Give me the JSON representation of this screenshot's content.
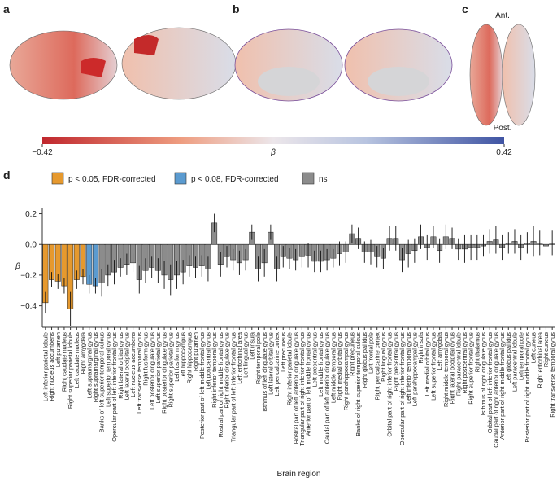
{
  "panels": [
    "a",
    "b",
    "c",
    "d"
  ],
  "brain_labels": {
    "anterior": "Ant.",
    "posterior": "Post."
  },
  "colorbar": {
    "label": "β",
    "ticks": [
      {
        "value": -0.42,
        "label": "−0.42"
      },
      {
        "value": 0.42,
        "label": "0.42"
      }
    ]
  },
  "chart_data": {
    "type": "bar",
    "xlabel": "Brain region",
    "ylabel": "β",
    "legend": [
      {
        "name": "p < 0.05, FDR-corrected",
        "color": "#e6992e"
      },
      {
        "name": "p < 0.08, FDR-corrected",
        "color": "#5b9bd0"
      },
      {
        "name": "ns",
        "color": "#8c8c8c"
      }
    ],
    "categories": [
      "Left inferior parietal lobule",
      "Right nucleus accumbens",
      "Left putamen",
      "Right caudate nucleus",
      "Right superior parietal lobule",
      "Left caudate nucleus",
      "Right amygdala",
      "Left supramarginal gyrus",
      "Right supramarginal gyrus",
      "Banks of left superior temporal sulcus",
      "Left superior temporal gyrus",
      "Opercular part of left inferior frontal gyrus",
      "Right lateral orbital gyrus",
      "Left lateral occipital gyrus",
      "Left nucleus accumbens",
      "Left transverse temporal gyrus",
      "Right fusiform gyrus",
      "Left posterior cingulate gyrus",
      "Left superior parietal gyrus",
      "Right posterior cingulate gyrus",
      "Right superior parietal gyrus",
      "Left fusiform gyrus",
      "Left hippocampus",
      "Right hippocampus",
      "Right putamen",
      "Posterior part of left middle frontal gyrus",
      "Left postcentral gyrus",
      "Right inferior temporal gyrus",
      "Rostral part of right middle frontal gyrus",
      "Right inferior cingulate gyrus",
      "Triangular part of left inferior frontal gyrus",
      "Left entorhinal area",
      "Left lingual gyrus",
      "Left insula",
      "Right temporal pole",
      "Isthmus of left cingulate gyrus",
      "Left lateral orbital gyrus",
      "Left pericalcarine cortex",
      "Left precuneus",
      "Right inferior parietal lobule",
      "Rostral part of left anterior cingulate gyrus",
      "Triangular part of right inferior frontal gyrus",
      "Anterior part of left middle frontal gyrus",
      "Left precentral gyrus",
      "Left middle frontal gyrus",
      "Caudal part of left anterior cingulate gyrus",
      "Left middle temporal gyrus",
      "Right medial orbital gyrus",
      "Right parahippocampal gyrus",
      "Right precuneus",
      "Banks of right superior temporal sulcus",
      "Right globus pallidus",
      "Left frontal pole",
      "Right pericalcarine cortex",
      "Right lingual gyrus",
      "Orbital part of right inferior frontal gyrus",
      "Right precentral gyrus",
      "Opercular part of right inferior frontal gyrus",
      "Left inferior temporal gyrus",
      "Left parahippocampal gyrus",
      "Right insula",
      "Left medial orbital gyrus",
      "Left superior frontal gyrus",
      "Left amygdala",
      "Right middle temporal gyrus",
      "Right lateral occipital gyrus",
      "Right paracentral lobule",
      "Right postcentral gyrus",
      "Right superior frontal gyrus",
      "Right thalamus",
      "Isthmus of right cingulate gyrus",
      "Orbital part of left inferior frontal gyrus",
      "Caudal part of right anterior cingulate gyrus",
      "Anterior part of right middle frontal gyrus",
      "Left globus pallidus",
      "Left paracentral lobule",
      "Left temporal pole",
      "Posterior part of right middle frontal gyrus",
      "Left cuneus",
      "Right entorhinal area",
      "Right cuneus",
      "Right transverse temporal gyrus"
    ],
    "values": [
      -0.38,
      -0.23,
      -0.24,
      -0.27,
      -0.42,
      -0.23,
      -0.21,
      -0.26,
      -0.27,
      -0.25,
      -0.2,
      -0.18,
      -0.15,
      -0.13,
      -0.12,
      -0.23,
      -0.17,
      -0.15,
      -0.17,
      -0.2,
      -0.23,
      -0.2,
      -0.18,
      -0.14,
      -0.15,
      -0.14,
      -0.16,
      0.14,
      -0.13,
      -0.08,
      -0.1,
      -0.12,
      -0.1,
      0.08,
      -0.16,
      -0.12,
      0.08,
      -0.16,
      -0.08,
      -0.09,
      -0.1,
      -0.08,
      -0.07,
      -0.11,
      -0.11,
      -0.1,
      -0.09,
      -0.06,
      -0.05,
      0.07,
      0.04,
      -0.05,
      -0.05,
      -0.08,
      -0.09,
      0.04,
      0.04,
      -0.1,
      -0.06,
      -0.04,
      0.05,
      -0.02,
      0.05,
      -0.04,
      0.05,
      0.04,
      -0.03,
      -0.03,
      -0.02,
      -0.02,
      -0.01,
      0.02,
      0.03,
      -0.02,
      0.01,
      0.02,
      -0.02,
      0.01,
      0.02,
      0.01,
      -0.01,
      0.01
    ],
    "errors": [
      0.07,
      0.05,
      0.05,
      0.05,
      0.11,
      0.06,
      0.05,
      0.06,
      0.05,
      0.09,
      0.07,
      0.08,
      0.06,
      0.07,
      0.06,
      0.09,
      0.08,
      0.07,
      0.08,
      0.09,
      0.1,
      0.09,
      0.08,
      0.07,
      0.07,
      0.07,
      0.08,
      0.06,
      0.08,
      0.07,
      0.07,
      0.08,
      0.07,
      0.05,
      0.08,
      0.09,
      0.05,
      0.08,
      0.07,
      0.07,
      0.07,
      0.07,
      0.08,
      0.07,
      0.07,
      0.07,
      0.06,
      0.08,
      0.07,
      0.06,
      0.07,
      0.07,
      0.08,
      0.07,
      0.07,
      0.08,
      0.08,
      0.08,
      0.09,
      0.08,
      0.08,
      0.08,
      0.07,
      0.08,
      0.08,
      0.07,
      0.07,
      0.09,
      0.08,
      0.08,
      0.07,
      0.08,
      0.09,
      0.08,
      0.07,
      0.08,
      0.08,
      0.07,
      0.1,
      0.08,
      0.09,
      0.08
    ],
    "colors": [
      "#e6992e",
      "#e6992e",
      "#e6992e",
      "#e6992e",
      "#e6992e",
      "#e6992e",
      "#e6992e",
      "#5b9bd0",
      "#5b9bd0",
      "#8c8c8c",
      "#8c8c8c",
      "#8c8c8c",
      "#8c8c8c",
      "#8c8c8c",
      "#8c8c8c",
      "#8c8c8c",
      "#8c8c8c",
      "#8c8c8c",
      "#8c8c8c",
      "#8c8c8c",
      "#8c8c8c",
      "#8c8c8c",
      "#8c8c8c",
      "#8c8c8c",
      "#8c8c8c",
      "#8c8c8c",
      "#8c8c8c",
      "#8c8c8c",
      "#8c8c8c",
      "#8c8c8c",
      "#8c8c8c",
      "#8c8c8c",
      "#8c8c8c",
      "#8c8c8c",
      "#8c8c8c",
      "#8c8c8c",
      "#8c8c8c",
      "#8c8c8c",
      "#8c8c8c",
      "#8c8c8c",
      "#8c8c8c",
      "#8c8c8c",
      "#8c8c8c",
      "#8c8c8c",
      "#8c8c8c",
      "#8c8c8c",
      "#8c8c8c",
      "#8c8c8c",
      "#8c8c8c",
      "#8c8c8c",
      "#8c8c8c",
      "#8c8c8c",
      "#8c8c8c",
      "#8c8c8c",
      "#8c8c8c",
      "#8c8c8c",
      "#8c8c8c",
      "#8c8c8c",
      "#8c8c8c",
      "#8c8c8c",
      "#8c8c8c",
      "#8c8c8c",
      "#8c8c8c",
      "#8c8c8c",
      "#8c8c8c",
      "#8c8c8c",
      "#8c8c8c",
      "#8c8c8c",
      "#8c8c8c",
      "#8c8c8c",
      "#8c8c8c",
      "#8c8c8c",
      "#8c8c8c",
      "#8c8c8c",
      "#8c8c8c",
      "#8c8c8c",
      "#8c8c8c",
      "#8c8c8c",
      "#8c8c8c",
      "#8c8c8c",
      "#8c8c8c",
      "#8c8c8c"
    ],
    "ylim": [
      -0.54,
      0.24
    ],
    "yticks": [
      0.2,
      {
        "value": 0,
        "label": "0.0"
      },
      {
        "value": -0.2,
        "label": "−0.2"
      },
      {
        "value": -0.4,
        "label": "−0.4"
      }
    ]
  }
}
